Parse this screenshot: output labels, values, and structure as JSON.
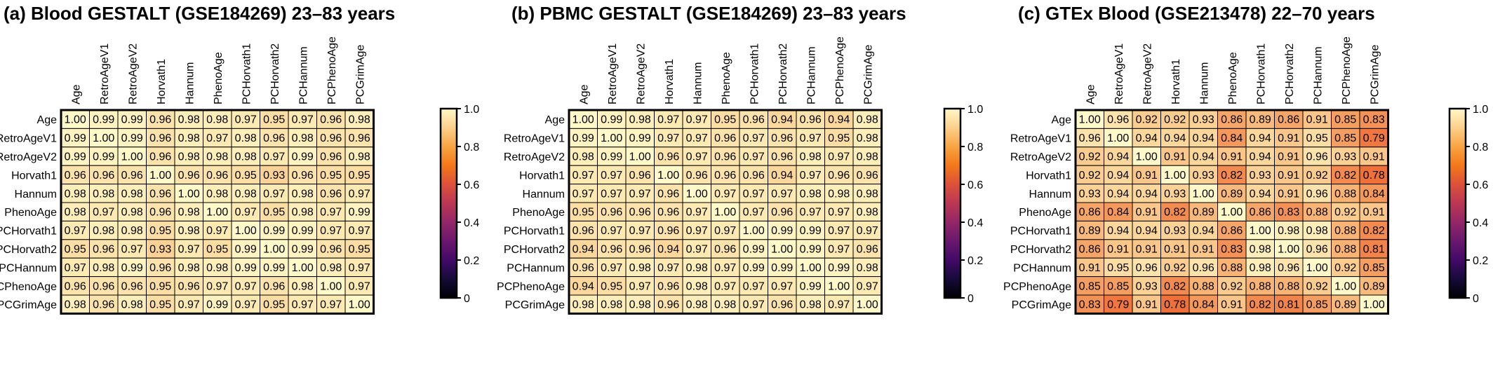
{
  "labels": [
    "Age",
    "RetroAgeV1",
    "RetroAgeV2",
    "Horvath1",
    "Hannum",
    "PhenoAge",
    "PCHorvath1",
    "PCHorvath2",
    "PCHannum",
    "PCPhenoAge",
    "PCGrimAge"
  ],
  "colorbar_ticks": [
    "0",
    "0.2",
    "0.4",
    "0.6",
    "0.8",
    "1.0"
  ],
  "chart_data": [
    {
      "type": "heatmap",
      "title": "(a)  Blood GESTALT (GSE184269) 23–83 years",
      "vmin": 0,
      "vmax": 1,
      "values": [
        [
          1.0,
          0.99,
          0.99,
          0.96,
          0.98,
          0.98,
          0.97,
          0.95,
          0.97,
          0.96,
          0.98
        ],
        [
          0.99,
          1.0,
          0.99,
          0.96,
          0.98,
          0.97,
          0.98,
          0.96,
          0.98,
          0.96,
          0.96
        ],
        [
          0.99,
          0.99,
          1.0,
          0.96,
          0.98,
          0.98,
          0.98,
          0.97,
          0.99,
          0.96,
          0.98
        ],
        [
          0.96,
          0.96,
          0.96,
          1.0,
          0.96,
          0.96,
          0.95,
          0.93,
          0.96,
          0.95,
          0.95
        ],
        [
          0.98,
          0.98,
          0.98,
          0.96,
          1.0,
          0.98,
          0.98,
          0.97,
          0.98,
          0.96,
          0.97
        ],
        [
          0.98,
          0.97,
          0.98,
          0.96,
          0.98,
          1.0,
          0.97,
          0.95,
          0.98,
          0.97,
          0.99
        ],
        [
          0.97,
          0.98,
          0.98,
          0.95,
          0.98,
          0.97,
          1.0,
          0.99,
          0.99,
          0.97,
          0.97
        ],
        [
          0.95,
          0.96,
          0.97,
          0.93,
          0.97,
          0.95,
          0.99,
          1.0,
          0.99,
          0.96,
          0.95
        ],
        [
          0.97,
          0.98,
          0.99,
          0.96,
          0.98,
          0.98,
          0.99,
          0.99,
          1.0,
          0.98,
          0.97
        ],
        [
          0.96,
          0.96,
          0.96,
          0.95,
          0.96,
          0.97,
          0.97,
          0.96,
          0.98,
          1.0,
          0.97
        ],
        [
          0.98,
          0.96,
          0.98,
          0.95,
          0.97,
          0.99,
          0.97,
          0.95,
          0.97,
          0.97,
          1.0
        ]
      ]
    },
    {
      "type": "heatmap",
      "title": "(b)  PBMC GESTALT (GSE184269) 23–83 years",
      "vmin": 0,
      "vmax": 1,
      "values": [
        [
          1.0,
          0.99,
          0.98,
          0.97,
          0.97,
          0.95,
          0.96,
          0.94,
          0.96,
          0.94,
          0.98
        ],
        [
          0.99,
          1.0,
          0.99,
          0.97,
          0.97,
          0.96,
          0.97,
          0.96,
          0.97,
          0.95,
          0.98
        ],
        [
          0.98,
          0.99,
          1.0,
          0.96,
          0.97,
          0.96,
          0.97,
          0.96,
          0.98,
          0.97,
          0.98
        ],
        [
          0.97,
          0.97,
          0.96,
          1.0,
          0.96,
          0.96,
          0.96,
          0.94,
          0.97,
          0.96,
          0.96
        ],
        [
          0.97,
          0.97,
          0.97,
          0.96,
          1.0,
          0.97,
          0.97,
          0.97,
          0.98,
          0.98,
          0.98
        ],
        [
          0.95,
          0.96,
          0.96,
          0.96,
          0.97,
          1.0,
          0.97,
          0.96,
          0.97,
          0.97,
          0.98
        ],
        [
          0.96,
          0.97,
          0.97,
          0.96,
          0.97,
          0.97,
          1.0,
          0.99,
          0.99,
          0.97,
          0.97
        ],
        [
          0.94,
          0.96,
          0.96,
          0.94,
          0.97,
          0.96,
          0.99,
          1.0,
          0.99,
          0.97,
          0.96
        ],
        [
          0.96,
          0.97,
          0.98,
          0.97,
          0.98,
          0.97,
          0.99,
          0.99,
          1.0,
          0.99,
          0.98
        ],
        [
          0.94,
          0.95,
          0.97,
          0.96,
          0.98,
          0.97,
          0.97,
          0.97,
          0.99,
          1.0,
          0.97
        ],
        [
          0.98,
          0.98,
          0.98,
          0.96,
          0.98,
          0.98,
          0.97,
          0.96,
          0.98,
          0.97,
          1.0
        ]
      ]
    },
    {
      "type": "heatmap",
      "title": "(c)  GTEx Blood (GSE213478) 22–70 years",
      "vmin": 0,
      "vmax": 1,
      "values": [
        [
          1.0,
          0.96,
          0.92,
          0.92,
          0.93,
          0.86,
          0.89,
          0.86,
          0.91,
          0.85,
          0.83
        ],
        [
          0.96,
          1.0,
          0.94,
          0.94,
          0.94,
          0.84,
          0.94,
          0.91,
          0.95,
          0.85,
          0.79
        ],
        [
          0.92,
          0.94,
          1.0,
          0.91,
          0.94,
          0.91,
          0.94,
          0.91,
          0.96,
          0.93,
          0.91
        ],
        [
          0.92,
          0.94,
          0.91,
          1.0,
          0.93,
          0.82,
          0.93,
          0.91,
          0.92,
          0.82,
          0.78
        ],
        [
          0.93,
          0.94,
          0.94,
          0.93,
          1.0,
          0.89,
          0.94,
          0.91,
          0.96,
          0.88,
          0.84
        ],
        [
          0.86,
          0.84,
          0.91,
          0.82,
          0.89,
          1.0,
          0.86,
          0.83,
          0.88,
          0.92,
          0.91
        ],
        [
          0.89,
          0.94,
          0.94,
          0.93,
          0.94,
          0.86,
          1.0,
          0.98,
          0.98,
          0.88,
          0.82
        ],
        [
          0.86,
          0.91,
          0.91,
          0.91,
          0.91,
          0.83,
          0.98,
          1.0,
          0.96,
          0.88,
          0.81
        ],
        [
          0.91,
          0.95,
          0.96,
          0.92,
          0.96,
          0.88,
          0.98,
          0.96,
          1.0,
          0.92,
          0.85
        ],
        [
          0.85,
          0.85,
          0.93,
          0.82,
          0.88,
          0.92,
          0.88,
          0.88,
          0.92,
          1.0,
          0.89
        ],
        [
          0.83,
          0.79,
          0.91,
          0.78,
          0.84,
          0.91,
          0.82,
          0.81,
          0.85,
          0.89,
          1.0
        ]
      ]
    }
  ]
}
